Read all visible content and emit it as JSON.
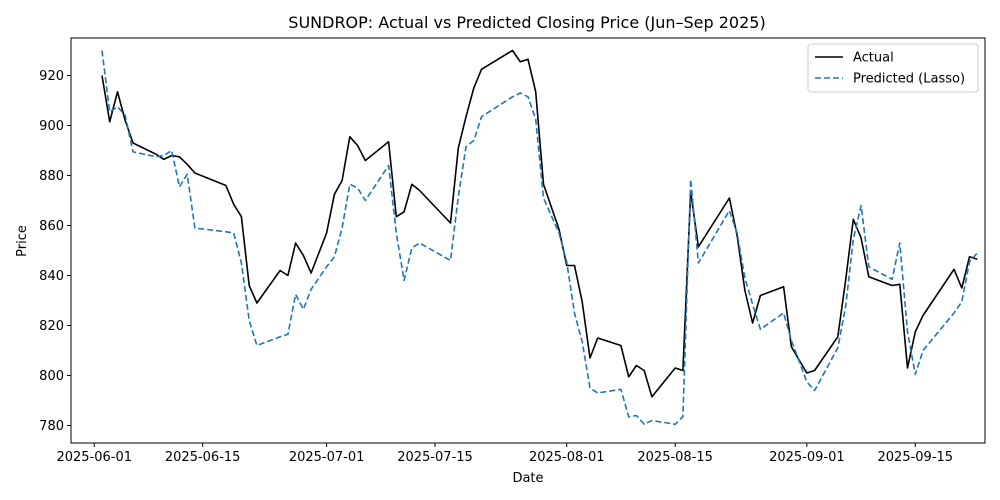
{
  "chart_data": {
    "type": "line",
    "title": "SUNDROP: Actual vs Predicted Closing Price (Jun–Sep 2025)",
    "xlabel": "Date",
    "ylabel": "Price",
    "xlim": [
      "2025-05-29",
      "2025-09-24"
    ],
    "ylim": [
      773,
      935
    ],
    "x_ticks": [
      "2025-06-01",
      "2025-06-15",
      "2025-07-01",
      "2025-07-15",
      "2025-08-01",
      "2025-08-15",
      "2025-09-01",
      "2025-09-15"
    ],
    "y_ticks": [
      780,
      800,
      820,
      840,
      860,
      880,
      900,
      920
    ],
    "legend": {
      "placement": "top-right",
      "entries": [
        "Actual",
        "Predicted (Lasso)"
      ]
    },
    "grid": false,
    "series": [
      {
        "name": "Actual",
        "color": "#000000",
        "style": "solid",
        "points": [
          [
            "2025-06-02",
            920
          ],
          [
            "2025-06-03",
            901.5
          ],
          [
            "2025-06-04",
            913.5
          ],
          [
            "2025-06-05",
            902
          ],
          [
            "2025-06-06",
            893
          ],
          [
            "2025-06-09",
            888.5
          ],
          [
            "2025-06-10",
            886.5
          ],
          [
            "2025-06-11",
            888
          ],
          [
            "2025-06-12",
            887.5
          ],
          [
            "2025-06-13",
            884.5
          ],
          [
            "2025-06-14",
            881
          ],
          [
            "2025-06-18",
            876
          ],
          [
            "2025-06-19",
            868.5
          ],
          [
            "2025-06-20",
            863.5
          ],
          [
            "2025-06-21",
            836
          ],
          [
            "2025-06-22",
            829
          ],
          [
            "2025-06-25",
            842
          ],
          [
            "2025-06-26",
            840
          ],
          [
            "2025-06-27",
            853
          ],
          [
            "2025-06-28",
            848
          ],
          [
            "2025-06-29",
            841
          ],
          [
            "2025-07-01",
            857
          ],
          [
            "2025-07-02",
            872.5
          ],
          [
            "2025-07-03",
            878
          ],
          [
            "2025-07-04",
            895.5
          ],
          [
            "2025-07-05",
            892
          ],
          [
            "2025-07-06",
            886
          ],
          [
            "2025-07-09",
            893.5
          ],
          [
            "2025-07-10",
            863.5
          ],
          [
            "2025-07-11",
            865.5
          ],
          [
            "2025-07-12",
            876.5
          ],
          [
            "2025-07-13",
            874
          ],
          [
            "2025-07-17",
            861
          ],
          [
            "2025-07-18",
            891
          ],
          [
            "2025-07-19",
            903.5
          ],
          [
            "2025-07-20",
            915
          ],
          [
            "2025-07-21",
            922.5
          ],
          [
            "2025-07-25",
            930
          ],
          [
            "2025-07-26",
            925.5
          ],
          [
            "2025-07-27",
            926.5
          ],
          [
            "2025-07-28",
            913.5
          ],
          [
            "2025-07-29",
            876.5
          ],
          [
            "2025-07-31",
            858.5
          ],
          [
            "2025-08-01",
            844
          ],
          [
            "2025-08-02",
            844
          ],
          [
            "2025-08-03",
            829.5
          ],
          [
            "2025-08-04",
            807
          ],
          [
            "2025-08-05",
            815
          ],
          [
            "2025-08-08",
            812
          ],
          [
            "2025-08-09",
            799.5
          ],
          [
            "2025-08-10",
            804
          ],
          [
            "2025-08-11",
            802
          ],
          [
            "2025-08-12",
            791.5
          ],
          [
            "2025-08-15",
            803
          ],
          [
            "2025-08-16",
            802
          ],
          [
            "2025-08-17",
            873.5
          ],
          [
            "2025-08-18",
            851.5
          ],
          [
            "2025-08-22",
            871
          ],
          [
            "2025-08-23",
            856
          ],
          [
            "2025-08-24",
            834
          ],
          [
            "2025-08-25",
            821
          ],
          [
            "2025-08-26",
            832
          ],
          [
            "2025-08-29",
            835.5
          ],
          [
            "2025-08-30",
            811.5
          ],
          [
            "2025-09-01",
            801
          ],
          [
            "2025-09-02",
            802
          ],
          [
            "2025-09-05",
            815.5
          ],
          [
            "2025-09-06",
            838
          ],
          [
            "2025-09-07",
            862.5
          ],
          [
            "2025-09-08",
            855
          ],
          [
            "2025-09-09",
            839.5
          ],
          [
            "2025-09-12",
            836
          ],
          [
            "2025-09-13",
            836.5
          ],
          [
            "2025-09-14",
            803
          ],
          [
            "2025-09-15",
            817.5
          ],
          [
            "2025-09-16",
            824
          ],
          [
            "2025-09-20",
            842.5
          ],
          [
            "2025-09-21",
            835
          ],
          [
            "2025-09-22",
            847.5
          ],
          [
            "2025-09-23",
            846.5
          ]
        ]
      },
      {
        "name": "Predicted (Lasso)",
        "color": "#1f77b4",
        "style": "dashed",
        "points": [
          [
            "2025-06-02",
            930
          ],
          [
            "2025-06-03",
            905.5
          ],
          [
            "2025-06-04",
            907.5
          ],
          [
            "2025-06-05",
            904
          ],
          [
            "2025-06-06",
            889.5
          ],
          [
            "2025-06-09",
            887.5
          ],
          [
            "2025-06-10",
            888
          ],
          [
            "2025-06-11",
            890
          ],
          [
            "2025-06-12",
            875.5
          ],
          [
            "2025-06-13",
            880.5
          ],
          [
            "2025-06-14",
            859
          ],
          [
            "2025-06-18",
            857.5
          ],
          [
            "2025-06-19",
            857
          ],
          [
            "2025-06-20",
            845
          ],
          [
            "2025-06-21",
            822
          ],
          [
            "2025-06-22",
            812
          ],
          [
            "2025-06-25",
            815.5
          ],
          [
            "2025-06-26",
            816.5
          ],
          [
            "2025-06-27",
            832.5
          ],
          [
            "2025-06-28",
            826.5
          ],
          [
            "2025-06-29",
            834.5
          ],
          [
            "2025-07-01",
            843.5
          ],
          [
            "2025-07-02",
            847.5
          ],
          [
            "2025-07-03",
            859
          ],
          [
            "2025-07-04",
            876.5
          ],
          [
            "2025-07-05",
            875
          ],
          [
            "2025-07-06",
            870
          ],
          [
            "2025-07-09",
            884
          ],
          [
            "2025-07-10",
            857
          ],
          [
            "2025-07-11",
            838
          ],
          [
            "2025-07-12",
            851
          ],
          [
            "2025-07-13",
            853
          ],
          [
            "2025-07-17",
            846
          ],
          [
            "2025-07-18",
            871.5
          ],
          [
            "2025-07-19",
            891.5
          ],
          [
            "2025-07-20",
            894
          ],
          [
            "2025-07-21",
            903.5
          ],
          [
            "2025-07-25",
            911.5
          ],
          [
            "2025-07-26",
            913
          ],
          [
            "2025-07-27",
            911.5
          ],
          [
            "2025-07-28",
            902.5
          ],
          [
            "2025-07-29",
            871
          ],
          [
            "2025-07-31",
            857
          ],
          [
            "2025-08-01",
            845.5
          ],
          [
            "2025-08-02",
            825
          ],
          [
            "2025-08-03",
            813.5
          ],
          [
            "2025-08-04",
            795
          ],
          [
            "2025-08-05",
            793
          ],
          [
            "2025-08-08",
            794.5
          ],
          [
            "2025-08-09",
            783.5
          ],
          [
            "2025-08-10",
            784
          ],
          [
            "2025-08-11",
            780.5
          ],
          [
            "2025-08-12",
            782
          ],
          [
            "2025-08-15",
            780.5
          ],
          [
            "2025-08-16",
            783.5
          ],
          [
            "2025-08-17",
            878.5
          ],
          [
            "2025-08-18",
            845
          ],
          [
            "2025-08-22",
            866
          ],
          [
            "2025-08-23",
            857
          ],
          [
            "2025-08-24",
            839
          ],
          [
            "2025-08-25",
            828.5
          ],
          [
            "2025-08-26",
            818.5
          ],
          [
            "2025-08-29",
            825
          ],
          [
            "2025-08-30",
            814
          ],
          [
            "2025-09-01",
            797.5
          ],
          [
            "2025-09-02",
            794
          ],
          [
            "2025-09-05",
            811
          ],
          [
            "2025-09-06",
            827.5
          ],
          [
            "2025-09-07",
            854.5
          ],
          [
            "2025-09-08",
            868
          ],
          [
            "2025-09-09",
            843.5
          ],
          [
            "2025-09-12",
            838.5
          ],
          [
            "2025-09-13",
            853
          ],
          [
            "2025-09-14",
            817.5
          ],
          [
            "2025-09-15",
            800.5
          ],
          [
            "2025-09-16",
            810
          ],
          [
            "2025-09-20",
            825
          ],
          [
            "2025-09-21",
            829.5
          ],
          [
            "2025-09-22",
            845.5
          ],
          [
            "2025-09-23",
            849
          ]
        ]
      }
    ]
  }
}
